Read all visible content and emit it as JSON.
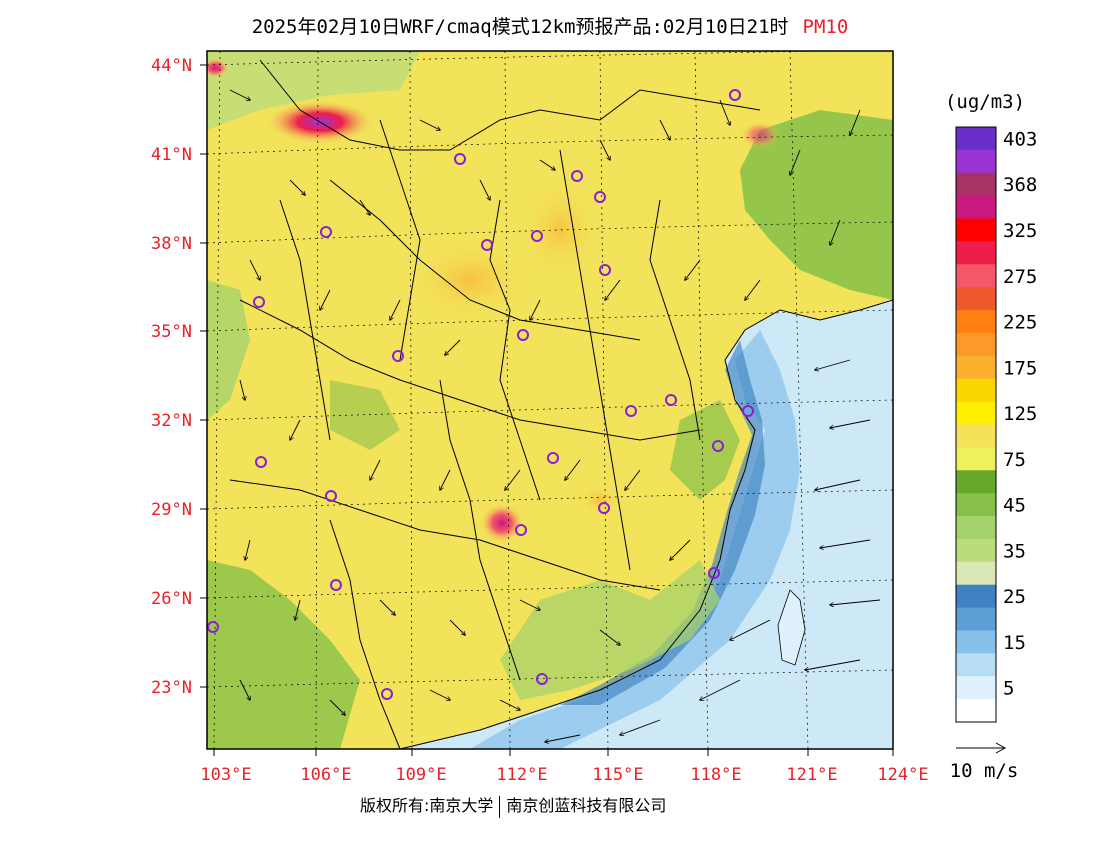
{
  "title": {
    "main": "2025年02月10日WRF/cmaq模式12km预报产品:02月10日21时",
    "pollutant": "PM10"
  },
  "map": {
    "lat_labels": [
      "44°N",
      "41°N",
      "38°N",
      "35°N",
      "32°N",
      "29°N",
      "26°N",
      "23°N"
    ],
    "lon_labels": [
      "103°E",
      "106°E",
      "109°E",
      "112°E",
      "115°E",
      "118°E",
      "121°E",
      "124°E"
    ],
    "land_base_color": "#f2e35a",
    "ocean_color": "#cde9f8"
  },
  "legend": {
    "unit": "(ug/m3)",
    "levels": [
      {
        "label": "403",
        "color": "#6b2fc9"
      },
      {
        "label": "",
        "color": "#9b34d6"
      },
      {
        "label": "368",
        "color": "#a83264"
      },
      {
        "label": "",
        "color": "#c8197e"
      },
      {
        "label": "325",
        "color": "#ff0000"
      },
      {
        "label": "",
        "color": "#ee1e4a"
      },
      {
        "label": "275",
        "color": "#f5586a"
      },
      {
        "label": "",
        "color": "#ee5a2e"
      },
      {
        "label": "225",
        "color": "#ff7f10"
      },
      {
        "label": "",
        "color": "#fb9a2a"
      },
      {
        "label": "175",
        "color": "#fbb030"
      },
      {
        "label": "",
        "color": "#fdd600"
      },
      {
        "label": "125",
        "color": "#ffef00"
      },
      {
        "label": "",
        "color": "#f5e15a"
      },
      {
        "label": "75",
        "color": "#eef15a"
      },
      {
        "label": "",
        "color": "#64a82c"
      },
      {
        "label": "45",
        "color": "#86c049"
      },
      {
        "label": "",
        "color": "#a6d26b"
      },
      {
        "label": "35",
        "color": "#bcdc7c"
      },
      {
        "label": "",
        "color": "#dae8b8"
      },
      {
        "label": "25",
        "color": "#3f82c2"
      },
      {
        "label": "",
        "color": "#5b9fd6"
      },
      {
        "label": "15",
        "color": "#87c1ea"
      },
      {
        "label": "",
        "color": "#b8def6"
      },
      {
        "label": "5",
        "color": "#dff1fc"
      },
      {
        "label": "",
        "color": "#ffffff"
      }
    ]
  },
  "wind_scale": {
    "label": "10 m/s"
  },
  "footer": {
    "left": "版权所有:南京大学",
    "right": "南京创蓝科技有限公司"
  }
}
